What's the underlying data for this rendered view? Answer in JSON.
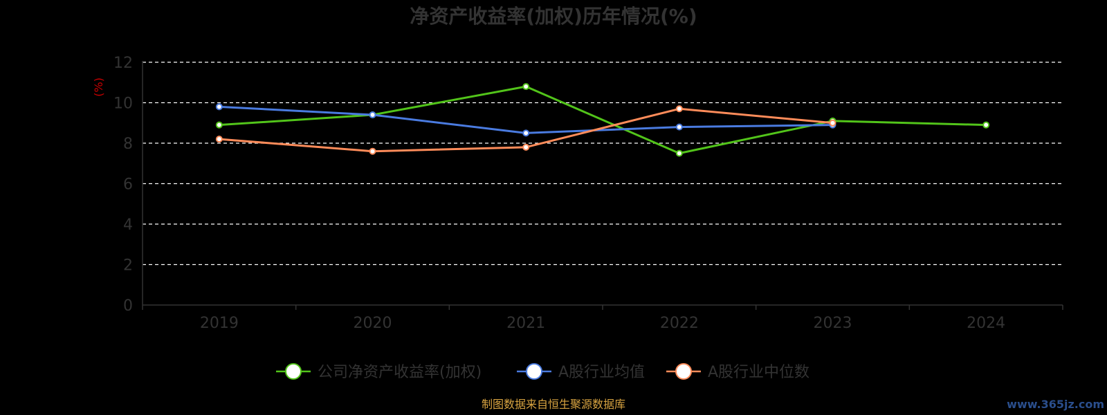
{
  "chart_data": {
    "type": "line",
    "title": "净资产收益率(加权)历年情况(%)",
    "ylabel": "(%)",
    "xlabel": "",
    "categories": [
      "2019",
      "2020",
      "2021",
      "2022",
      "2023",
      "2024"
    ],
    "ylim": [
      0,
      12
    ],
    "yticks": [
      0,
      2,
      4,
      6,
      8,
      10,
      12
    ],
    "grid": true,
    "legend_position": "bottom-center",
    "series": [
      {
        "name": "公司净资产收益率(加权)",
        "color": "#52c41a",
        "values": [
          8.9,
          9.4,
          10.8,
          7.5,
          9.1,
          8.9
        ]
      },
      {
        "name": "A股行业均值",
        "color": "#4a7be0",
        "values": [
          9.8,
          9.4,
          8.5,
          8.8,
          8.9,
          null
        ]
      },
      {
        "name": "A股行业中位数",
        "color": "#ff8c5a",
        "values": [
          8.2,
          7.6,
          7.8,
          9.7,
          9.0,
          null
        ]
      }
    ]
  },
  "footer": {
    "source": "制图数据来自恒生聚源数据库",
    "watermark": "www.365jz.com"
  }
}
